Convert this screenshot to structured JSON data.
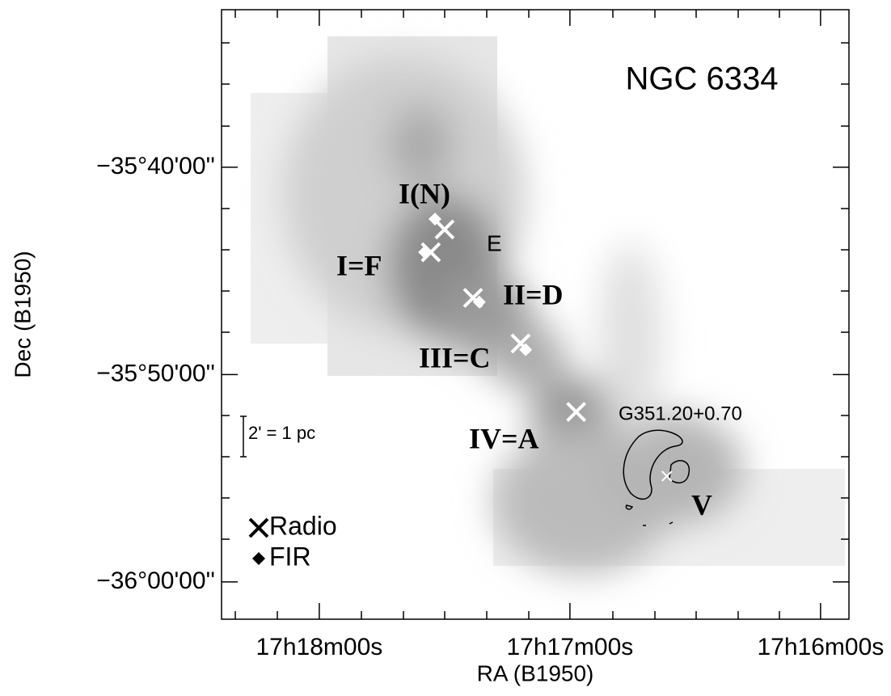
{
  "chart_data": {
    "type": "scatter",
    "title": "NGC 6334",
    "xlabel": "RA (B1950)",
    "ylabel": "Dec (B1950)",
    "xlim": [
      62303.4,
      62153.2
    ],
    "ylim": [
      -2161.8,
      -2132.4
    ],
    "xticks": [
      {
        "value": 62280,
        "label": "17h18m00s"
      },
      {
        "value": 62220,
        "label": "17h17m00s"
      },
      {
        "value": 62160,
        "label": "17h16m00s"
      }
    ],
    "yticks": [
      {
        "value": -2140,
        "label": "−35°40'00''"
      },
      {
        "value": -2150,
        "label": "−35°50'00''"
      },
      {
        "value": -2160,
        "label": "−36°00'00''"
      }
    ],
    "series": [
      {
        "name": "Radio",
        "marker": "x",
        "color": "#ffffff",
        "x": [
          62250.0,
          62253.3,
          62243.2,
          62231.8,
          62218.5,
          62196.8
        ],
        "values": [
          -2143.0,
          -2144.1,
          -2146.3,
          -2148.5,
          -2151.8,
          -2154.9
        ]
      },
      {
        "name": "FIR",
        "marker": "diamond",
        "color": "#ffffff",
        "x": [
          62252.3,
          62254.8,
          62241.7,
          62230.6
        ],
        "values": [
          -2142.5,
          -2144.1,
          -2146.5,
          -2148.8
        ]
      }
    ],
    "annotations": [
      "I(N)",
      "E",
      "I=F",
      "II=D",
      "III=C",
      "IV=A",
      "G351.20+0.70",
      "V",
      "2' = 1 pc"
    ]
  }
}
